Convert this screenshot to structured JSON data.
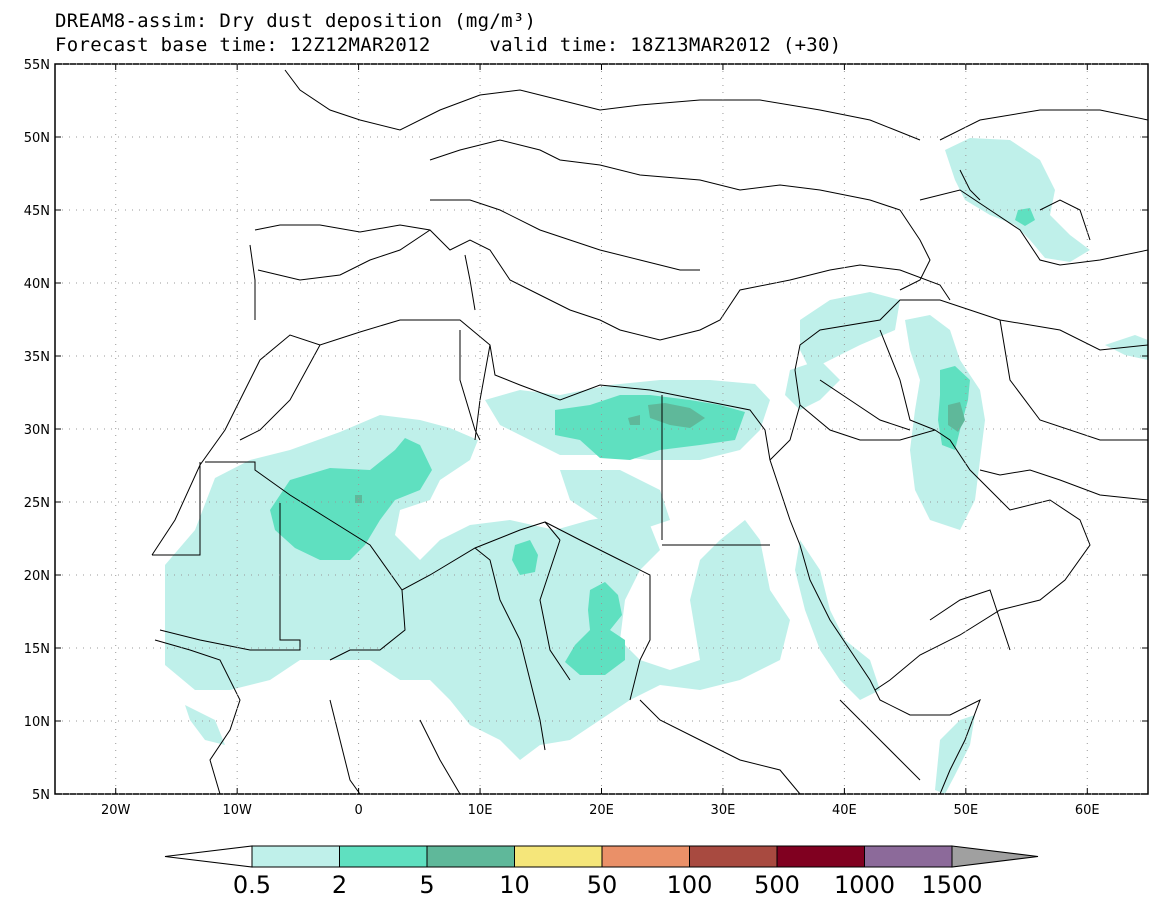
{
  "title": {
    "line1": "DREAM8-assim: Dry dust deposition (mg/m³)",
    "base_label": "Forecast base time: 12Z12MAR2012",
    "valid_label": "valid time: 18Z13MAR2012 (+30)"
  },
  "axes": {
    "lon_range": [
      -25,
      65
    ],
    "lat_range": [
      5,
      55
    ],
    "x_ticks": [
      "20W",
      "10W",
      "0",
      "10E",
      "20E",
      "30E",
      "40E",
      "50E",
      "60E"
    ],
    "x_tick_values": [
      -20,
      -10,
      0,
      10,
      20,
      30,
      40,
      50,
      60
    ],
    "y_ticks": [
      "55N",
      "50N",
      "45N",
      "40N",
      "35N",
      "30N",
      "25N",
      "20N",
      "15N",
      "10N",
      "5N"
    ],
    "y_tick_values": [
      55,
      50,
      45,
      40,
      35,
      30,
      25,
      20,
      15,
      10,
      5
    ]
  },
  "legend": {
    "labels": [
      "0.5",
      "2",
      "5",
      "10",
      "50",
      "100",
      "500",
      "1000",
      "1500"
    ],
    "colors": [
      "#bff0ea",
      "#5fe0c0",
      "#5fb89a",
      "#f5e67a",
      "#ea9068",
      "#a84a40",
      "#800020",
      "#8c6a9a",
      "#a0a0a0"
    ],
    "under_color": "#ffffff"
  }
}
